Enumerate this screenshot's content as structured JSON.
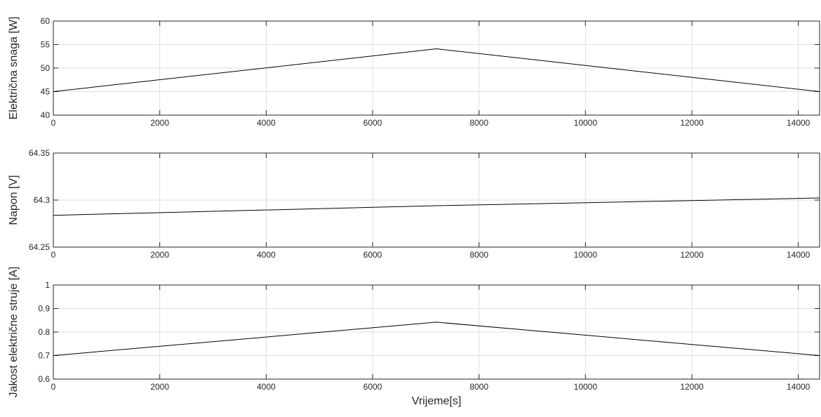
{
  "chart_data": [
    {
      "type": "line",
      "ylabel": "Električna snaga [W]",
      "xlabel": "",
      "xlim": [
        0,
        14400
      ],
      "ylim": [
        40,
        60
      ],
      "xticks": [
        "0",
        "2000",
        "4000",
        "6000",
        "8000",
        "10000",
        "12000",
        "14000"
      ],
      "yticks": [
        "40",
        "45",
        "50",
        "55",
        "60"
      ],
      "grid": true,
      "series": [
        {
          "x": [
            0,
            7200,
            14400
          ],
          "y": [
            45.0,
            54.1,
            45.0
          ]
        }
      ]
    },
    {
      "type": "line",
      "ylabel": "Napon [V]",
      "xlabel": "",
      "xlim": [
        0,
        14400
      ],
      "ylim": [
        64.25,
        64.35
      ],
      "xticks": [
        "0",
        "2000",
        "4000",
        "6000",
        "8000",
        "10000",
        "12000",
        "14000"
      ],
      "yticks": [
        "64.25",
        "64.3",
        "64.35"
      ],
      "grid": true,
      "series": [
        {
          "x": [
            0,
            7200,
            14400
          ],
          "y": [
            64.2838,
            64.294,
            64.3022
          ]
        }
      ]
    },
    {
      "type": "line",
      "ylabel": "Jakost električne struje [A]",
      "xlabel": "Vrijeme[s]",
      "xlim": [
        0,
        14400
      ],
      "ylim": [
        0.6,
        1
      ],
      "xticks": [
        "0",
        "2000",
        "4000",
        "6000",
        "8000",
        "10000",
        "12000",
        "14000"
      ],
      "yticks": [
        "0.6",
        "0.7",
        "0.8",
        "0.9",
        "1"
      ],
      "grid": true,
      "series": [
        {
          "x": [
            0,
            7200,
            14400
          ],
          "y": [
            0.7,
            0.842,
            0.7
          ]
        }
      ]
    }
  ],
  "colors": {
    "line": "#000000",
    "axes": "#262626",
    "grid": "#dfdfdf",
    "background": "#ffffff"
  }
}
